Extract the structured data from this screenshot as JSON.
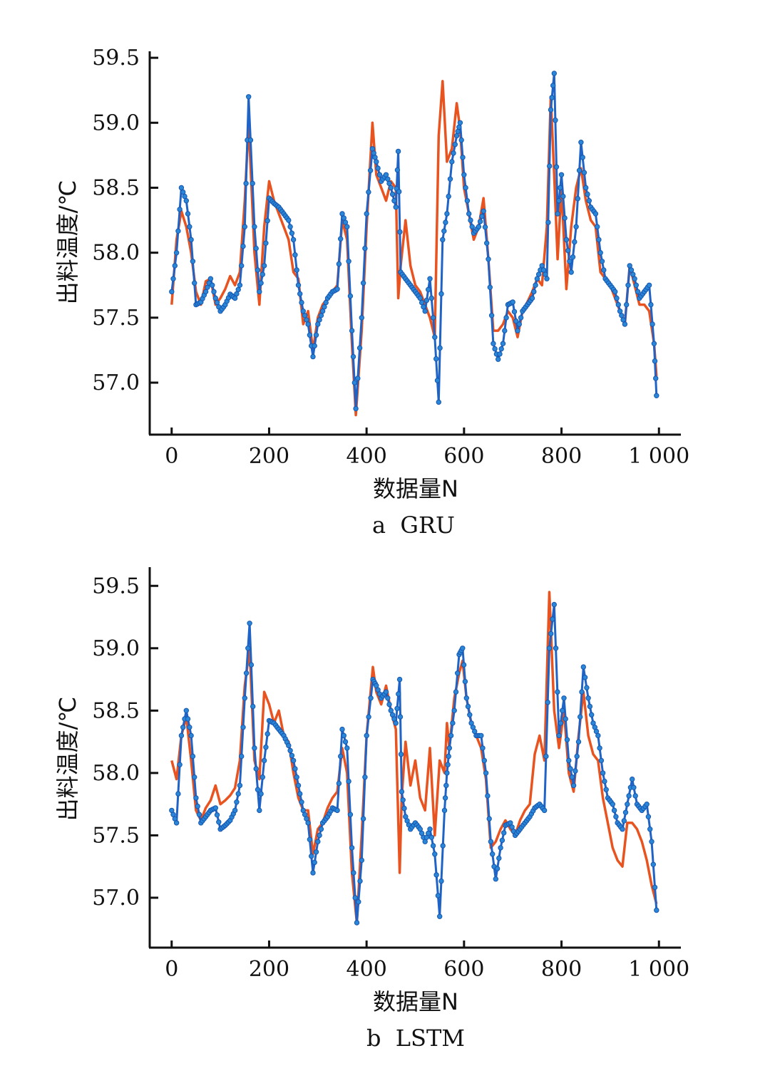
{
  "chart_data": [
    {
      "type": "line",
      "caption": "a  GRU",
      "xlabel": "数据量N",
      "ylabel": "出料温度/℃",
      "xlim": [
        -45,
        1045
      ],
      "ylim": [
        56.6,
        59.55
      ],
      "xticks": [
        "0",
        "200",
        "400",
        "600",
        "800",
        "1 000"
      ],
      "xtick_values": [
        0,
        200,
        400,
        600,
        800,
        1000
      ],
      "yticks": [
        "57.0",
        "57.5",
        "58.0",
        "58.5",
        "59.0",
        "59.5"
      ],
      "ytick_values": [
        57.0,
        57.5,
        58.0,
        58.5,
        59.0,
        59.5
      ],
      "colors": {
        "series_a": "#e8531f",
        "series_b": "#1f63c6"
      },
      "series": [
        {
          "x": [
            0,
            10,
            20,
            30,
            40,
            50,
            60,
            70,
            80,
            90,
            100,
            110,
            120,
            130,
            140,
            150,
            158,
            170,
            180,
            190,
            200,
            210,
            220,
            230,
            240,
            250,
            260,
            270,
            280,
            290,
            300,
            310,
            320,
            330,
            340,
            350,
            360,
            370,
            378,
            390,
            400,
            412,
            420,
            430,
            440,
            450,
            460,
            465,
            470,
            480,
            490,
            500,
            510,
            520,
            530,
            540,
            548,
            556,
            565,
            575,
            585,
            592,
            600,
            610,
            620,
            630,
            640,
            650,
            660,
            670,
            680,
            690,
            700,
            710,
            720,
            730,
            740,
            750,
            760,
            770,
            778,
            785,
            792,
            800,
            810,
            820,
            830,
            840,
            850,
            860,
            870,
            880,
            890,
            900,
            910,
            920,
            930,
            940,
            950,
            960,
            970,
            980,
            990,
            995
          ],
          "y": [
            57.6,
            58.1,
            58.32,
            58.2,
            58.0,
            57.7,
            57.6,
            57.78,
            57.8,
            57.6,
            57.65,
            57.72,
            57.82,
            57.75,
            57.85,
            58.4,
            59.0,
            58.0,
            57.6,
            58.2,
            58.55,
            58.4,
            58.3,
            58.2,
            58.1,
            57.85,
            57.8,
            57.45,
            57.55,
            57.25,
            57.5,
            57.6,
            57.65,
            57.7,
            57.75,
            58.25,
            58.1,
            57.3,
            56.75,
            57.4,
            58.2,
            59.0,
            58.6,
            58.5,
            58.4,
            58.55,
            58.5,
            57.65,
            57.9,
            58.25,
            57.9,
            57.75,
            57.7,
            57.6,
            57.5,
            57.35,
            58.9,
            59.32,
            58.7,
            58.8,
            59.15,
            58.95,
            58.5,
            58.3,
            58.1,
            58.2,
            58.42,
            57.95,
            57.4,
            57.4,
            57.45,
            57.55,
            57.5,
            57.35,
            57.55,
            57.62,
            57.7,
            57.8,
            57.75,
            58.2,
            59.2,
            58.6,
            57.95,
            58.5,
            57.72,
            58.2,
            58.5,
            58.65,
            58.4,
            58.25,
            58.2,
            57.85,
            57.8,
            57.75,
            57.65,
            57.55,
            57.45,
            57.9,
            57.75,
            57.6,
            57.6,
            57.55,
            57.3,
            57.05
          ]
        },
        {
          "x": [
            0,
            10,
            20,
            30,
            40,
            50,
            60,
            70,
            80,
            90,
            100,
            110,
            120,
            130,
            140,
            150,
            158,
            170,
            180,
            190,
            200,
            210,
            220,
            230,
            240,
            250,
            260,
            270,
            280,
            290,
            300,
            310,
            320,
            330,
            340,
            350,
            360,
            370,
            378,
            390,
            400,
            412,
            420,
            430,
            440,
            450,
            460,
            465,
            470,
            480,
            490,
            500,
            510,
            520,
            530,
            540,
            548,
            556,
            565,
            575,
            585,
            592,
            600,
            610,
            620,
            630,
            640,
            650,
            660,
            670,
            680,
            690,
            700,
            710,
            720,
            730,
            740,
            750,
            760,
            770,
            778,
            785,
            792,
            800,
            810,
            820,
            830,
            840,
            850,
            860,
            870,
            880,
            890,
            900,
            910,
            920,
            930,
            940,
            950,
            960,
            970,
            980,
            990,
            995
          ],
          "y": [
            57.7,
            58.0,
            58.5,
            58.4,
            58.1,
            57.6,
            57.62,
            57.7,
            57.8,
            57.65,
            57.55,
            57.6,
            57.68,
            57.65,
            57.75,
            58.2,
            59.2,
            58.2,
            57.7,
            57.9,
            58.42,
            58.38,
            58.35,
            58.3,
            58.25,
            58.1,
            57.75,
            57.55,
            57.45,
            57.2,
            57.45,
            57.55,
            57.65,
            57.7,
            57.72,
            58.3,
            58.2,
            57.4,
            56.8,
            57.5,
            58.3,
            58.8,
            58.7,
            58.55,
            58.6,
            58.5,
            58.35,
            58.78,
            57.85,
            57.8,
            57.75,
            57.7,
            57.65,
            57.55,
            57.8,
            57.35,
            56.85,
            58.1,
            58.3,
            58.7,
            58.9,
            59.0,
            58.6,
            58.3,
            58.15,
            58.2,
            58.32,
            57.95,
            57.3,
            57.18,
            57.3,
            57.6,
            57.62,
            57.4,
            57.55,
            57.6,
            57.65,
            57.8,
            57.9,
            57.8,
            59.1,
            59.38,
            58.3,
            58.6,
            58.1,
            57.85,
            58.2,
            58.85,
            58.5,
            58.35,
            58.3,
            58.0,
            57.8,
            57.75,
            57.7,
            57.55,
            57.45,
            57.9,
            57.8,
            57.65,
            57.7,
            57.75,
            57.3,
            56.9
          ]
        }
      ]
    },
    {
      "type": "line",
      "caption": "b  LSTM",
      "xlabel": "数据量N",
      "ylabel": "出料温度/℃",
      "xlim": [
        -45,
        1045
      ],
      "ylim": [
        56.6,
        59.65
      ],
      "xticks": [
        "0",
        "200",
        "400",
        "600",
        "800",
        "1 000"
      ],
      "xtick_values": [
        0,
        200,
        400,
        600,
        800,
        1000
      ],
      "yticks": [
        "57.0",
        "57.5",
        "58.0",
        "58.5",
        "59.0",
        "59.5"
      ],
      "ytick_values": [
        57.0,
        57.5,
        58.0,
        58.5,
        59.0,
        59.5
      ],
      "colors": {
        "series_a": "#e8531f",
        "series_b": "#1f63c6"
      },
      "series": [
        {
          "x": [
            0,
            10,
            20,
            30,
            40,
            50,
            60,
            70,
            80,
            90,
            100,
            110,
            120,
            130,
            140,
            150,
            160,
            170,
            180,
            190,
            200,
            210,
            220,
            230,
            240,
            250,
            260,
            270,
            280,
            290,
            300,
            310,
            320,
            330,
            340,
            350,
            360,
            370,
            380,
            390,
            400,
            413,
            420,
            430,
            440,
            450,
            460,
            468,
            472,
            480,
            490,
            500,
            510,
            520,
            530,
            540,
            550,
            560,
            565,
            570,
            580,
            590,
            597,
            605,
            615,
            625,
            635,
            645,
            655,
            665,
            675,
            685,
            695,
            705,
            715,
            725,
            735,
            745,
            755,
            765,
            775,
            785,
            795,
            805,
            815,
            825,
            835,
            845,
            855,
            865,
            875,
            885,
            895,
            905,
            915,
            925,
            935,
            945,
            955,
            965,
            975,
            985,
            995
          ],
          "y": [
            58.1,
            57.95,
            58.3,
            58.45,
            58.1,
            57.7,
            57.62,
            57.72,
            57.78,
            57.9,
            57.75,
            57.78,
            57.82,
            57.88,
            58.1,
            58.7,
            59.0,
            58.1,
            57.95,
            58.65,
            58.55,
            58.4,
            58.5,
            58.3,
            58.25,
            58.0,
            57.8,
            57.7,
            57.7,
            57.35,
            57.55,
            57.6,
            57.72,
            57.8,
            57.85,
            58.2,
            58.0,
            57.2,
            56.8,
            57.5,
            58.3,
            58.85,
            58.65,
            58.55,
            58.7,
            58.5,
            58.35,
            57.2,
            57.8,
            58.25,
            57.9,
            58.1,
            57.8,
            57.7,
            58.2,
            57.5,
            58.1,
            58.0,
            58.4,
            58.2,
            58.6,
            58.8,
            58.9,
            58.6,
            58.4,
            58.3,
            58.2,
            57.95,
            57.4,
            57.45,
            57.55,
            57.62,
            57.55,
            57.5,
            57.62,
            57.7,
            57.75,
            58.15,
            58.3,
            58.1,
            59.45,
            58.5,
            58.2,
            58.5,
            58.0,
            57.85,
            58.3,
            58.65,
            58.3,
            58.15,
            58.1,
            57.8,
            57.6,
            57.4,
            57.3,
            57.25,
            57.6,
            57.6,
            57.55,
            57.45,
            57.3,
            57.1,
            56.95
          ]
        },
        {
          "x": [
            0,
            10,
            20,
            30,
            40,
            50,
            60,
            70,
            80,
            90,
            100,
            110,
            120,
            130,
            140,
            150,
            160,
            170,
            180,
            190,
            200,
            210,
            220,
            230,
            240,
            250,
            260,
            270,
            280,
            290,
            300,
            310,
            320,
            330,
            340,
            350,
            360,
            370,
            380,
            390,
            400,
            413,
            420,
            430,
            440,
            450,
            460,
            468,
            472,
            480,
            490,
            500,
            510,
            520,
            530,
            540,
            550,
            560,
            565,
            570,
            580,
            590,
            597,
            605,
            615,
            625,
            635,
            645,
            655,
            665,
            675,
            685,
            695,
            705,
            715,
            725,
            735,
            745,
            755,
            765,
            775,
            785,
            795,
            805,
            815,
            825,
            835,
            845,
            855,
            865,
            875,
            885,
            895,
            905,
            915,
            925,
            935,
            945,
            955,
            965,
            975,
            985,
            995
          ],
          "y": [
            57.7,
            57.6,
            58.3,
            58.5,
            58.3,
            57.8,
            57.6,
            57.65,
            57.7,
            57.72,
            57.55,
            57.58,
            57.62,
            57.7,
            57.9,
            58.6,
            59.2,
            58.2,
            57.7,
            58.1,
            58.42,
            58.4,
            58.35,
            58.3,
            58.22,
            58.1,
            57.9,
            57.7,
            57.6,
            57.2,
            57.45,
            57.6,
            57.65,
            57.72,
            57.7,
            58.35,
            58.2,
            57.4,
            56.8,
            57.3,
            58.3,
            58.75,
            58.7,
            58.6,
            58.65,
            58.5,
            58.4,
            58.75,
            57.85,
            57.65,
            57.55,
            57.6,
            57.55,
            57.45,
            57.55,
            57.35,
            56.85,
            57.7,
            58.0,
            58.2,
            58.5,
            58.95,
            59.0,
            58.6,
            58.4,
            58.3,
            58.3,
            58.0,
            57.45,
            57.15,
            57.4,
            57.58,
            57.6,
            57.5,
            57.55,
            57.6,
            57.65,
            57.72,
            57.75,
            57.7,
            59.0,
            59.35,
            58.3,
            58.6,
            58.1,
            57.9,
            58.25,
            58.85,
            58.6,
            58.4,
            58.3,
            58.0,
            57.8,
            57.75,
            57.6,
            57.55,
            57.75,
            57.95,
            57.75,
            57.7,
            57.75,
            57.45,
            56.9
          ]
        }
      ]
    }
  ]
}
